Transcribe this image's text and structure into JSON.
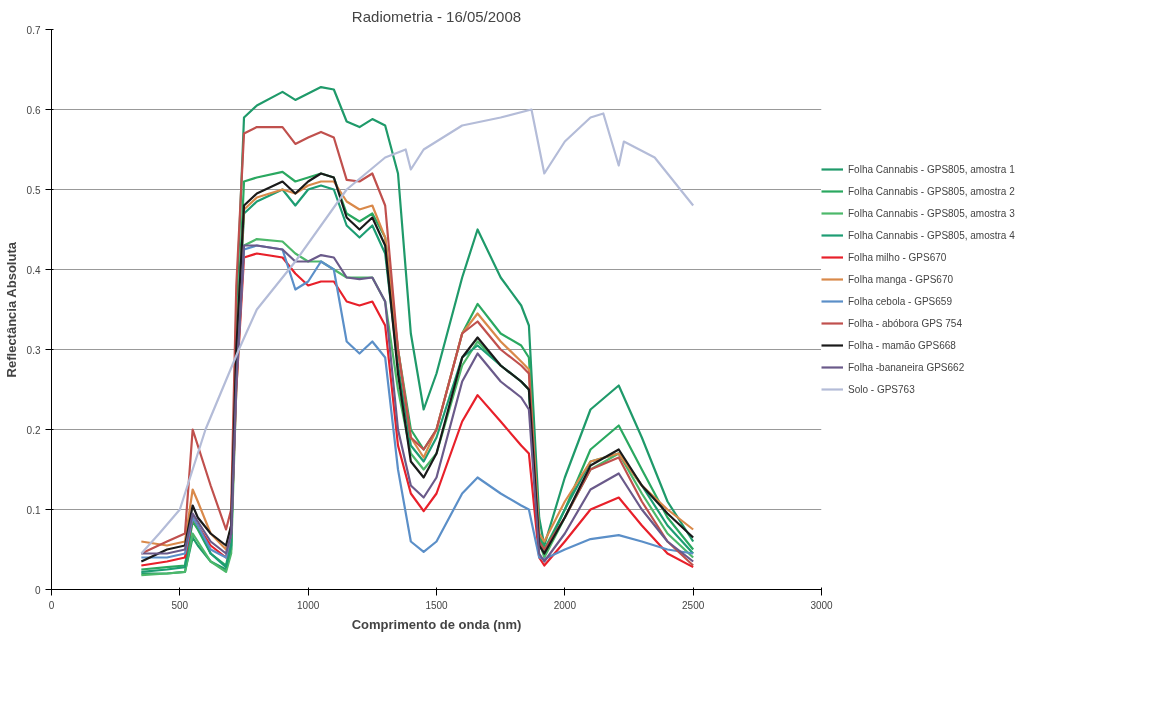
{
  "chart_data": {
    "type": "line",
    "title": "Radiometria - 16/05/2008",
    "xlabel": "Comprimento de onda (nm)",
    "ylabel": "Reflectância Absoluta",
    "x": [
      350,
      450,
      520,
      550,
      570,
      620,
      680,
      700,
      720,
      750,
      800,
      900,
      950,
      1000,
      1050,
      1100,
      1150,
      1200,
      1250,
      1300,
      1350,
      1400,
      1450,
      1500,
      1600,
      1660,
      1750,
      1830,
      1860,
      1900,
      1920,
      2000,
      2100,
      2210,
      2300,
      2400,
      2500
    ],
    "xlim": [
      0,
      3000
    ],
    "xticks": [
      0,
      500,
      1000,
      1500,
      2000,
      2500,
      3000
    ],
    "ylim": [
      0,
      0.7
    ],
    "yticks": [
      0,
      0.1,
      0.2,
      0.3,
      0.4,
      0.5,
      0.6,
      0.7
    ],
    "grid": "y",
    "legend": "right",
    "marker": "none",
    "line_style": "solid",
    "series": [
      {
        "name": "Folha Cannabis - GPS805, amostra 1",
        "color": "#1f9a6a",
        "values": [
          0.02,
          0.02,
          0.022,
          0.065,
          0.055,
          0.035,
          0.025,
          0.05,
          0.35,
          0.59,
          0.605,
          0.622,
          0.612,
          0.62,
          0.628,
          0.625,
          0.585,
          0.578,
          0.588,
          0.58,
          0.52,
          0.32,
          0.225,
          0.27,
          0.39,
          0.45,
          0.39,
          0.355,
          0.33,
          0.09,
          0.055,
          0.14,
          0.225,
          0.255,
          0.19,
          0.11,
          0.06
        ]
      },
      {
        "name": "Folha Cannabis - GPS805, amostra 2",
        "color": "#2aa860",
        "values": [
          0.025,
          0.028,
          0.03,
          0.085,
          0.075,
          0.045,
          0.03,
          0.06,
          0.3,
          0.51,
          0.515,
          0.522,
          0.51,
          0.515,
          0.52,
          0.515,
          0.47,
          0.46,
          0.47,
          0.44,
          0.3,
          0.2,
          0.175,
          0.2,
          0.32,
          0.357,
          0.32,
          0.305,
          0.29,
          0.07,
          0.05,
          0.1,
          0.175,
          0.205,
          0.15,
          0.09,
          0.05
        ]
      },
      {
        "name": "Folha Cannabis - GPS805, amostra 3",
        "color": "#4cb86a",
        "values": [
          0.018,
          0.02,
          0.022,
          0.07,
          0.06,
          0.035,
          0.022,
          0.045,
          0.25,
          0.43,
          0.438,
          0.435,
          0.42,
          0.41,
          0.41,
          0.4,
          0.39,
          0.39,
          0.39,
          0.36,
          0.25,
          0.17,
          0.15,
          0.17,
          0.28,
          0.31,
          0.28,
          0.26,
          0.25,
          0.06,
          0.04,
          0.09,
          0.15,
          0.17,
          0.12,
          0.07,
          0.04
        ]
      },
      {
        "name": "Folha Cannabis - GPS805, amostra 4",
        "color": "#1d9d73",
        "values": [
          0.022,
          0.025,
          0.028,
          0.09,
          0.08,
          0.045,
          0.028,
          0.055,
          0.28,
          0.47,
          0.485,
          0.5,
          0.48,
          0.5,
          0.505,
          0.5,
          0.455,
          0.44,
          0.455,
          0.42,
          0.28,
          0.18,
          0.16,
          0.19,
          0.29,
          0.305,
          0.28,
          0.26,
          0.25,
          0.065,
          0.045,
          0.1,
          0.16,
          0.17,
          0.13,
          0.08,
          0.045
        ]
      },
      {
        "name": "Folha milho - GPS670",
        "color": "#e8202a",
        "values": [
          0.03,
          0.035,
          0.04,
          0.09,
          0.08,
          0.055,
          0.04,
          0.07,
          0.25,
          0.415,
          0.42,
          0.415,
          0.395,
          0.38,
          0.385,
          0.385,
          0.36,
          0.355,
          0.36,
          0.33,
          0.18,
          0.12,
          0.098,
          0.12,
          0.21,
          0.243,
          0.21,
          0.18,
          0.17,
          0.04,
          0.03,
          0.06,
          0.1,
          0.115,
          0.08,
          0.045,
          0.028
        ]
      },
      {
        "name": "Folha manga - GPS670",
        "color": "#d9894a",
        "values": [
          0.06,
          0.055,
          0.06,
          0.125,
          0.11,
          0.07,
          0.05,
          0.08,
          0.3,
          0.475,
          0.49,
          0.5,
          0.495,
          0.505,
          0.51,
          0.51,
          0.485,
          0.475,
          0.48,
          0.44,
          0.3,
          0.19,
          0.165,
          0.2,
          0.32,
          0.345,
          0.31,
          0.285,
          0.275,
          0.07,
          0.06,
          0.11,
          0.16,
          0.17,
          0.13,
          0.1,
          0.075
        ]
      },
      {
        "name": "Folha cebola - GPS659",
        "color": "#5b8fc8",
        "values": [
          0.04,
          0.04,
          0.045,
          0.09,
          0.08,
          0.05,
          0.04,
          0.07,
          0.26,
          0.425,
          0.43,
          0.425,
          0.375,
          0.385,
          0.41,
          0.4,
          0.31,
          0.295,
          0.31,
          0.29,
          0.15,
          0.06,
          0.047,
          0.06,
          0.12,
          0.14,
          0.12,
          0.105,
          0.1,
          0.04,
          0.038,
          0.05,
          0.063,
          0.068,
          0.06,
          0.05,
          0.045
        ]
      },
      {
        "name": "Folha - abóbora GPS 754",
        "color": "#c0504d",
        "values": [
          0.045,
          0.06,
          0.07,
          0.2,
          0.18,
          0.13,
          0.075,
          0.1,
          0.38,
          0.57,
          0.578,
          0.578,
          0.557,
          0.565,
          0.572,
          0.565,
          0.512,
          0.51,
          0.52,
          0.48,
          0.3,
          0.19,
          0.175,
          0.2,
          0.32,
          0.335,
          0.3,
          0.28,
          0.27,
          0.06,
          0.05,
          0.09,
          0.15,
          0.165,
          0.11,
          0.06,
          0.03
        ]
      },
      {
        "name": "Folha - mamão GPS668",
        "color": "#1a1a1a",
        "values": [
          0.035,
          0.05,
          0.055,
          0.105,
          0.09,
          0.07,
          0.055,
          0.08,
          0.3,
          0.48,
          0.495,
          0.51,
          0.495,
          0.51,
          0.52,
          0.515,
          0.465,
          0.45,
          0.465,
          0.43,
          0.27,
          0.16,
          0.14,
          0.17,
          0.29,
          0.315,
          0.28,
          0.26,
          0.25,
          0.055,
          0.045,
          0.09,
          0.155,
          0.175,
          0.13,
          0.095,
          0.065
        ]
      },
      {
        "name": "Folha -bananeira GPS662",
        "color": "#6a5a8a",
        "values": [
          0.045,
          0.045,
          0.05,
          0.095,
          0.085,
          0.06,
          0.045,
          0.07,
          0.26,
          0.43,
          0.43,
          0.425,
          0.41,
          0.41,
          0.418,
          0.415,
          0.39,
          0.388,
          0.39,
          0.36,
          0.2,
          0.13,
          0.115,
          0.14,
          0.26,
          0.295,
          0.26,
          0.24,
          0.225,
          0.045,
          0.035,
          0.07,
          0.125,
          0.145,
          0.1,
          0.06,
          0.035
        ]
      },
      {
        "name": "Solo - GPS763",
        "color": "#b4bcd8",
        "x": [
          350,
          420,
          500,
          600,
          730,
          800,
          950,
          1150,
          1300,
          1380,
          1400,
          1450,
          1600,
          1750,
          1870,
          1920,
          2000,
          2100,
          2150,
          2210,
          2230,
          2350,
          2400,
          2500
        ],
        "values": [
          0.045,
          0.07,
          0.1,
          0.2,
          0.3,
          0.35,
          0.41,
          0.5,
          0.54,
          0.55,
          0.525,
          0.55,
          0.58,
          0.59,
          0.6,
          0.52,
          0.56,
          0.59,
          0.595,
          0.53,
          0.56,
          0.54,
          0.52,
          0.48
        ]
      }
    ]
  }
}
